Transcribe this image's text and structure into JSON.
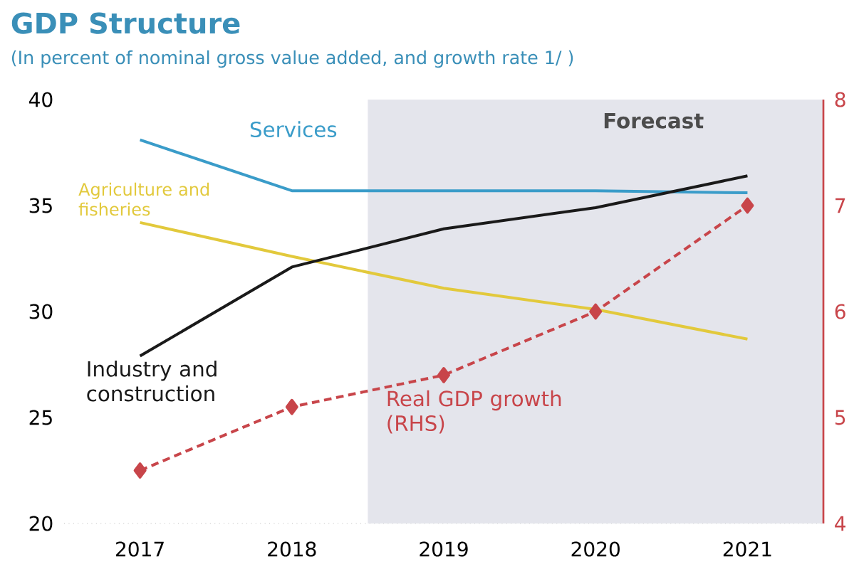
{
  "chart_data": {
    "type": "line",
    "title": "GDP Structure",
    "subtitle": "(In percent of nominal gross value added, and growth rate 1/ )",
    "x": [
      2017,
      2018,
      2019,
      2020,
      2021
    ],
    "xlim": [
      2016.5,
      2021.5
    ],
    "xticks": [
      2017,
      2018,
      2019,
      2020,
      2021
    ],
    "ylim": [
      20,
      40
    ],
    "yticks": [
      20,
      25,
      30,
      35,
      40
    ],
    "y2lim": [
      4,
      8
    ],
    "y2ticks": [
      4,
      5,
      6,
      7,
      8
    ],
    "legend": false,
    "grid": false,
    "bands": [
      {
        "axis": "x",
        "from": 2018.5,
        "to": 2021.5,
        "label": "Forecast",
        "color": "#e4e5ec"
      }
    ],
    "series": [
      {
        "name": "Services",
        "color": "#3a9cc9",
        "values": [
          38.1,
          35.7,
          35.7,
          35.7,
          35.6
        ]
      },
      {
        "name": "Agriculture and fisheries",
        "color": "#e2c93c",
        "values": [
          34.2,
          32.6,
          31.1,
          30.1,
          28.7
        ]
      },
      {
        "name": "Industry and construction",
        "color": "#1a1a1a",
        "values": [
          27.9,
          32.1,
          33.9,
          34.9,
          36.4
        ]
      },
      {
        "name": "Real GDP growth (RHS)",
        "color": "#c8454a",
        "axis": "y2",
        "marker": "diamond",
        "line_style": "dashed",
        "values": [
          4.5,
          5.1,
          5.4,
          6.0,
          7.0
        ]
      }
    ]
  }
}
